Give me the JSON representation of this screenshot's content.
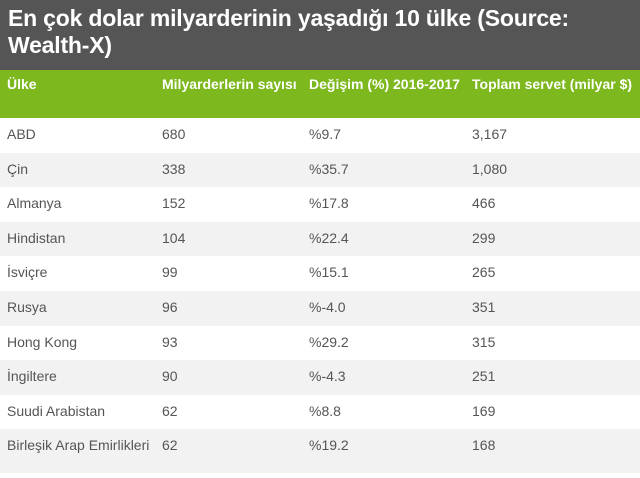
{
  "title": "En çok dolar milyarderinin yaşadığı 10 ülke (Source: Wealth-X)",
  "columns": [
    "Ülke",
    "Milyarderlerin sayısı",
    "Değişim (%) 2016-2017",
    "Toplam servet (milyar $)"
  ],
  "rows": [
    [
      "ABD",
      "680",
      "%9.7",
      "3,167"
    ],
    [
      "Çin",
      "338",
      "%35.7",
      "1,080"
    ],
    [
      "Almanya",
      "152",
      "%17.8",
      "466"
    ],
    [
      "Hindistan",
      "104",
      "%22.4",
      "299"
    ],
    [
      "İsviçre",
      "99",
      "%15.1",
      "265"
    ],
    [
      "Rusya",
      "96",
      "%-4.0",
      "351"
    ],
    [
      "Hong Kong",
      "93",
      "%29.2",
      "315"
    ],
    [
      "İngiltere",
      "90",
      "%-4.3",
      "251"
    ],
    [
      "Suudi Arabistan",
      "62",
      "%8.8",
      "169"
    ],
    [
      "Birleşik Arap Emirlikleri",
      "62",
      "%19.2",
      "168"
    ]
  ],
  "colors": {
    "title_bg": "#555555",
    "header_bg": "#7cb81e",
    "row_alt": "#f2f2f2",
    "text": "#555555"
  }
}
